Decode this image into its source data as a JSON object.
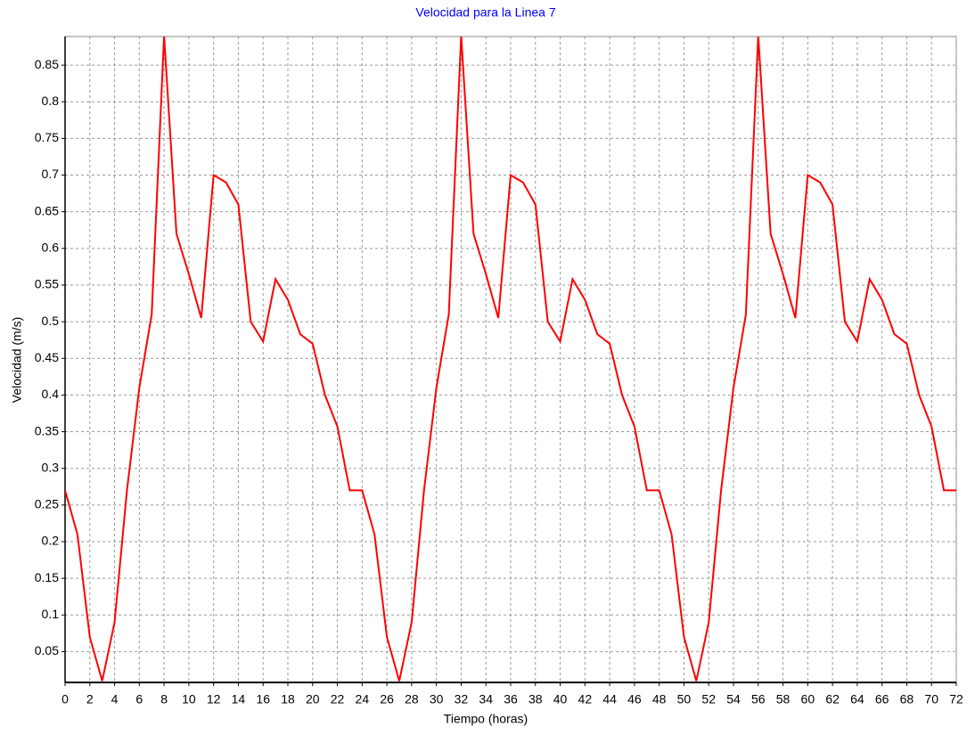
{
  "chart_data": {
    "type": "line",
    "title": "Velocidad para la Linea 7",
    "x_label": "Tiempo (horas)",
    "y_label": "Velocidad (m/s)",
    "x": [
      0,
      1,
      2,
      3,
      4,
      5,
      6,
      7,
      8,
      9,
      10,
      11,
      12,
      13,
      14,
      15,
      16,
      17,
      18,
      19,
      20,
      21,
      22,
      23,
      24,
      25,
      26,
      27,
      28,
      29,
      30,
      31,
      32,
      33,
      34,
      35,
      36,
      37,
      38,
      39,
      40,
      41,
      42,
      43,
      44,
      45,
      46,
      47,
      48,
      49,
      50,
      51,
      52,
      53,
      54,
      55,
      56,
      57,
      58,
      59,
      60,
      61,
      62,
      63,
      64,
      65,
      66,
      67,
      68,
      69,
      70,
      71,
      72
    ],
    "series": [
      {
        "name": "Velocidad",
        "color": "#ff0000",
        "values": [
          0.27,
          0.21,
          0.07,
          0.01,
          0.09,
          0.27,
          0.41,
          0.51,
          0.89,
          0.62,
          0.565,
          0.505,
          0.7,
          0.69,
          0.66,
          0.5,
          0.473,
          0.558,
          0.53,
          0.483,
          0.47,
          0.4,
          0.357,
          0.27,
          0.27,
          0.21,
          0.07,
          0.01,
          0.09,
          0.27,
          0.41,
          0.51,
          0.89,
          0.62,
          0.565,
          0.505,
          0.7,
          0.69,
          0.66,
          0.5,
          0.473,
          0.558,
          0.53,
          0.483,
          0.47,
          0.4,
          0.357,
          0.27,
          0.27,
          0.21,
          0.07,
          0.01,
          0.09,
          0.27,
          0.41,
          0.51,
          0.89,
          0.62,
          0.565,
          0.505,
          0.7,
          0.69,
          0.66,
          0.5,
          0.473,
          0.558,
          0.53,
          0.483,
          0.47,
          0.4,
          0.357,
          0.27,
          0.27
        ]
      }
    ],
    "xlim": [
      0,
      72
    ],
    "xticks": [
      0,
      2,
      4,
      6,
      8,
      10,
      12,
      14,
      16,
      18,
      20,
      22,
      24,
      26,
      28,
      30,
      32,
      34,
      36,
      38,
      40,
      42,
      44,
      46,
      48,
      50,
      52,
      54,
      56,
      58,
      60,
      62,
      64,
      66,
      68,
      70,
      72
    ],
    "ylim": [
      0.008,
      0.889
    ],
    "yticks": [
      0.05,
      0.1,
      0.15,
      0.2,
      0.25,
      0.3,
      0.35,
      0.4,
      0.45,
      0.5,
      0.55,
      0.6,
      0.65,
      0.7,
      0.75,
      0.8,
      0.85
    ],
    "grid": true
  }
}
